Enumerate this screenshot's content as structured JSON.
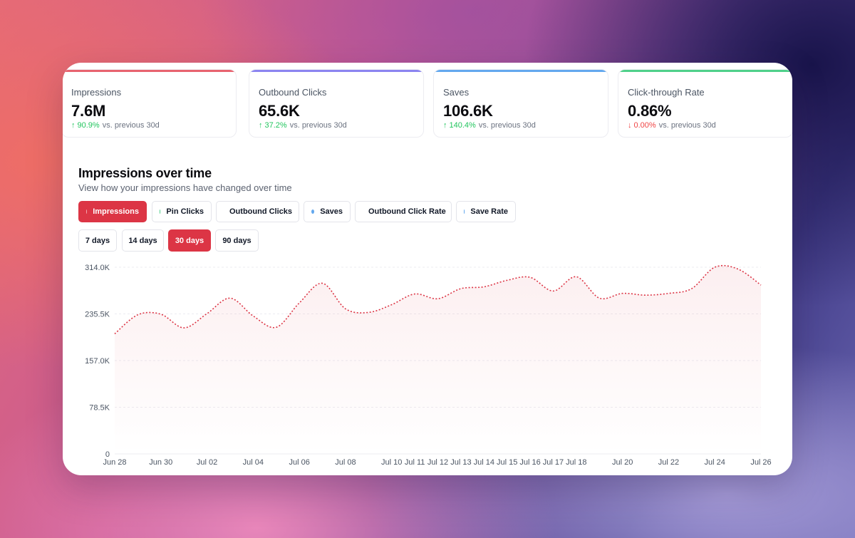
{
  "metrics": [
    {
      "label": "Impressions",
      "value": "7.6M",
      "direction": "up",
      "change": "90.9%",
      "comparison": "vs. previous 30d",
      "color": "#e8636f"
    },
    {
      "label": "Outbound Clicks",
      "value": "65.6K",
      "direction": "up",
      "change": "37.2%",
      "comparison": "vs. previous 30d",
      "color": "#8b84f0"
    },
    {
      "label": "Saves",
      "value": "106.6K",
      "direction": "up",
      "change": "140.4%",
      "comparison": "vs. previous 30d",
      "color": "#63a8ee"
    },
    {
      "label": "Click-through Rate",
      "value": "0.86%",
      "direction": "down",
      "change": "0.00%",
      "comparison": "vs. previous 30d",
      "color": "#4fd08a"
    }
  ],
  "section": {
    "title": "Impressions over time",
    "subtitle": "View how your impressions have changed over time"
  },
  "metric_toggles": [
    {
      "label": "Impressions",
      "dot": "#f3a6ae",
      "active": true
    },
    {
      "label": "Pin Clicks",
      "dot": "#4fd08a",
      "active": false
    },
    {
      "label": "Outbound Clicks",
      "dot": "#6d6ee8",
      "active": false
    },
    {
      "label": "Saves",
      "dot": "#63a8ee",
      "active": false
    },
    {
      "label": "Outbound Click Rate",
      "dot": "#8b84f0",
      "active": false
    },
    {
      "label": "Save Rate",
      "dot": "#63a8ee",
      "active": false
    }
  ],
  "ranges": [
    {
      "label": "7 days",
      "active": false
    },
    {
      "label": "14 days",
      "active": false
    },
    {
      "label": "30 days",
      "active": true
    },
    {
      "label": "90 days",
      "active": false
    }
  ],
  "chart_data": {
    "type": "area",
    "title": "",
    "xlabel": "",
    "ylabel": "",
    "ylim": [
      0,
      314000
    ],
    "yticks": [
      0,
      78500,
      157000,
      235500,
      314000
    ],
    "ytick_labels": [
      "0",
      "78.5K",
      "157.0K",
      "235.5K",
      "314.0K"
    ],
    "line_style": "dotted",
    "grid": true,
    "color": "#dc3545",
    "x": [
      "Jun 28",
      "Jun 29",
      "Jun 30",
      "Jul 01",
      "Jul 02",
      "Jul 03",
      "Jul 04",
      "Jul 05",
      "Jul 06",
      "Jul 07",
      "Jul 08",
      "Jul 09",
      "Jul 10",
      "Jul 11",
      "Jul 12",
      "Jul 13",
      "Jul 14",
      "Jul 15",
      "Jul 16",
      "Jul 17",
      "Jul 18",
      "Jul 19",
      "Jul 20",
      "Jul 21",
      "Jul 22",
      "Jul 23",
      "Jul 24",
      "Jul 25",
      "Jul 26"
    ],
    "x_labels": [
      "Jun 28",
      "Jun 30",
      "Jul 02",
      "Jul 04",
      "Jul 06",
      "Jul 08",
      "Jul 10",
      "Jul 11",
      "Jul 12",
      "Jul 13",
      "Jul 14",
      "Jul 15",
      "Jul 16",
      "Jul 17",
      "Jul 18",
      "Jul 20",
      "Jul 22",
      "Jul 24",
      "Jul 26"
    ],
    "series": [
      {
        "values": [
          202000,
          234000,
          235000,
          212000,
          236000,
          262000,
          232000,
          213000,
          254000,
          287000,
          244000,
          238000,
          251000,
          269000,
          261000,
          278000,
          281000,
          292000,
          297000,
          274000,
          298000,
          262000,
          270000,
          267000,
          270000,
          278000,
          314000,
          311000,
          284000
        ]
      }
    ]
  }
}
